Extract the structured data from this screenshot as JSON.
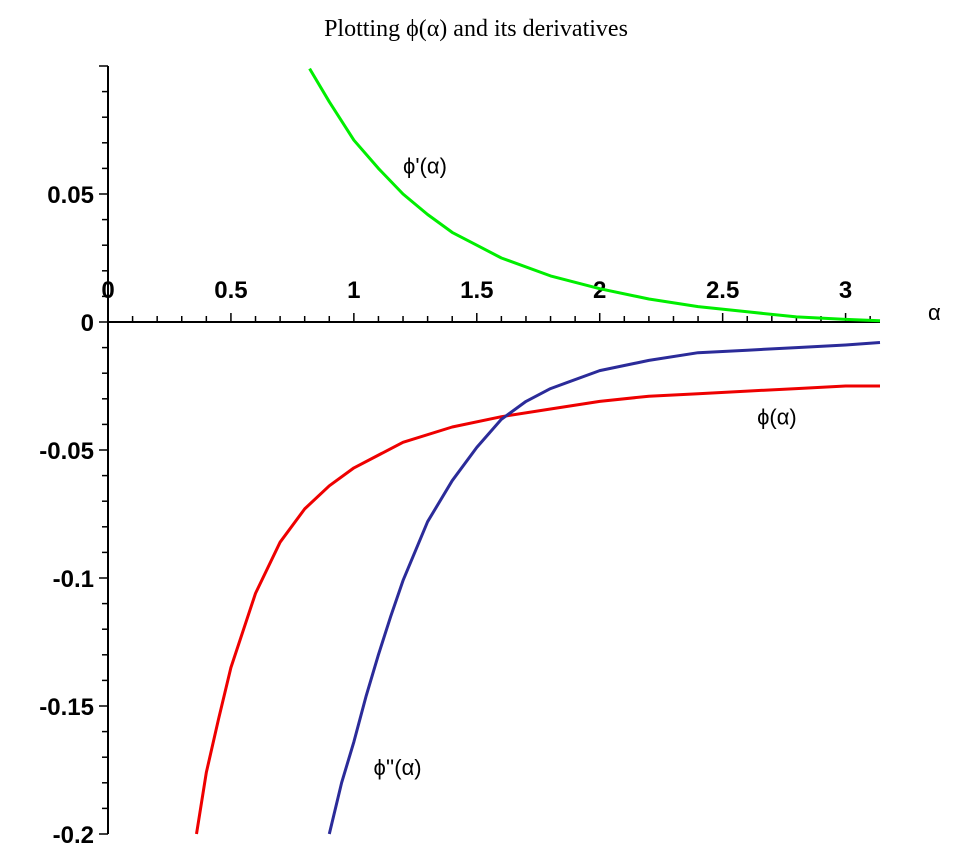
{
  "chart_data": {
    "type": "line",
    "title": "Plotting  ϕ(α)  and its derivatives",
    "xlabel": "α",
    "ylabel": "",
    "xlim": [
      0,
      3.14
    ],
    "ylim": [
      -0.2,
      0.1
    ],
    "grid": false,
    "legend": "none",
    "x_ticks": [
      {
        "value": 0,
        "label": "0"
      },
      {
        "value": 0.5,
        "label": "0.5"
      },
      {
        "value": 1,
        "label": "1"
      },
      {
        "value": 1.5,
        "label": "1.5"
      },
      {
        "value": 2,
        "label": "2"
      },
      {
        "value": 2.5,
        "label": "2.5"
      },
      {
        "value": 3,
        "label": "3"
      }
    ],
    "y_ticks": [
      {
        "value": 0.05,
        "label": "0.05"
      },
      {
        "value": 0,
        "label": "0"
      },
      {
        "value": -0.05,
        "label": "-0.05"
      },
      {
        "value": -0.1,
        "label": "-0.1"
      },
      {
        "value": -0.15,
        "label": "-0.15"
      },
      {
        "value": -0.2,
        "label": "-0.2"
      }
    ],
    "series": [
      {
        "label": "ϕ'(α)",
        "color": "#00ee00",
        "label_at": [
          1.2,
          0.058
        ],
        "points": [
          [
            0.82,
            0.099
          ],
          [
            0.9,
            0.086
          ],
          [
            1.0,
            0.071
          ],
          [
            1.1,
            0.06
          ],
          [
            1.2,
            0.05
          ],
          [
            1.3,
            0.042
          ],
          [
            1.4,
            0.035
          ],
          [
            1.5,
            0.03
          ],
          [
            1.6,
            0.025
          ],
          [
            1.8,
            0.018
          ],
          [
            2.0,
            0.013
          ],
          [
            2.2,
            0.009
          ],
          [
            2.4,
            0.006
          ],
          [
            2.6,
            0.004
          ],
          [
            2.8,
            0.002
          ],
          [
            3.0,
            0.001
          ],
          [
            3.14,
            0.0005
          ]
        ]
      },
      {
        "label": "ϕ(α)",
        "color": "#ee0000",
        "label_at": [
          2.64,
          -0.04
        ],
        "points": [
          [
            0.36,
            -0.2
          ],
          [
            0.4,
            -0.176
          ],
          [
            0.45,
            -0.155
          ],
          [
            0.5,
            -0.135
          ],
          [
            0.6,
            -0.106
          ],
          [
            0.7,
            -0.086
          ],
          [
            0.8,
            -0.073
          ],
          [
            0.9,
            -0.064
          ],
          [
            1.0,
            -0.057
          ],
          [
            1.2,
            -0.047
          ],
          [
            1.4,
            -0.041
          ],
          [
            1.6,
            -0.037
          ],
          [
            1.8,
            -0.034
          ],
          [
            2.0,
            -0.031
          ],
          [
            2.2,
            -0.029
          ],
          [
            2.4,
            -0.028
          ],
          [
            2.6,
            -0.027
          ],
          [
            2.8,
            -0.026
          ],
          [
            3.0,
            -0.025
          ],
          [
            3.14,
            -0.025
          ]
        ]
      },
      {
        "label": "ϕ''(α)",
        "color": "#2b2b99",
        "label_at": [
          1.08,
          -0.177
        ],
        "points": [
          [
            0.9,
            -0.2
          ],
          [
            0.95,
            -0.18
          ],
          [
            1.0,
            -0.164
          ],
          [
            1.05,
            -0.146
          ],
          [
            1.1,
            -0.13
          ],
          [
            1.15,
            -0.115
          ],
          [
            1.2,
            -0.101
          ],
          [
            1.3,
            -0.078
          ],
          [
            1.4,
            -0.062
          ],
          [
            1.5,
            -0.049
          ],
          [
            1.6,
            -0.038
          ],
          [
            1.7,
            -0.031
          ],
          [
            1.8,
            -0.026
          ],
          [
            2.0,
            -0.019
          ],
          [
            2.2,
            -0.015
          ],
          [
            2.4,
            -0.012
          ],
          [
            2.6,
            -0.011
          ],
          [
            2.8,
            -0.01
          ],
          [
            3.0,
            -0.009
          ],
          [
            3.14,
            -0.008
          ]
        ]
      }
    ]
  }
}
